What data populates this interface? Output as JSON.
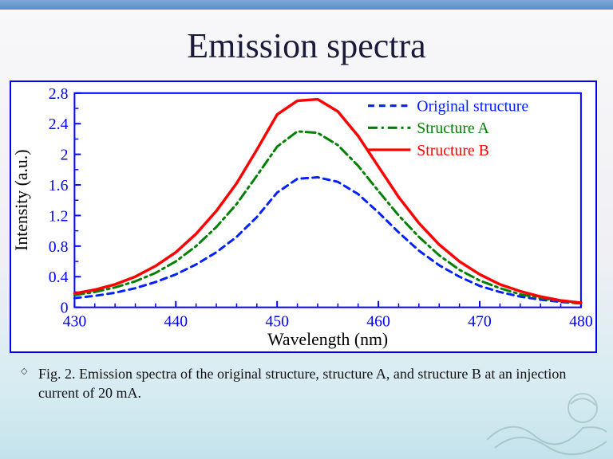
{
  "title": "Emission spectra",
  "caption": "Fig. 2. Emission spectra of the original structure, structure A, and structure B at an injection current of 20 mA.",
  "chart": {
    "type": "line",
    "background_color": "#ffffff",
    "frame_color": "#0000ff",
    "title_fontsize": 44,
    "xlabel": "Wavelength (nm)",
    "ylabel": "Intensity (a.u.)",
    "label_fontsize": 22,
    "label_color": "#000000",
    "tick_fontsize": 20,
    "tick_color": "#0000ff",
    "xlim": [
      430,
      480
    ],
    "ylim": [
      0,
      2.8
    ],
    "xticks": [
      430,
      440,
      450,
      460,
      470,
      480
    ],
    "yticks": [
      0,
      0.4,
      0.8,
      1.2,
      1.6,
      2.0,
      2.4,
      2.8
    ],
    "minor_ticks": true,
    "legend": {
      "position": "upper-right",
      "fontsize": 20,
      "items": [
        {
          "label": "Original structure",
          "color": "#0020ff",
          "dash": "dashed"
        },
        {
          "label": "Structure A",
          "color": "#008000",
          "dash": "dashdot"
        },
        {
          "label": "Structure B",
          "color": "#ff0000",
          "dash": "solid"
        }
      ]
    },
    "series": [
      {
        "name": "Original structure",
        "color": "#0020ff",
        "dash": "8,6",
        "line_width": 3,
        "x": [
          430,
          432,
          434,
          436,
          438,
          440,
          442,
          444,
          446,
          448,
          450,
          452,
          454,
          456,
          458,
          460,
          462,
          464,
          466,
          468,
          470,
          472,
          474,
          476,
          478,
          480
        ],
        "y": [
          0.12,
          0.15,
          0.19,
          0.25,
          0.33,
          0.43,
          0.56,
          0.72,
          0.92,
          1.18,
          1.5,
          1.68,
          1.7,
          1.64,
          1.48,
          1.24,
          0.98,
          0.74,
          0.55,
          0.4,
          0.28,
          0.2,
          0.14,
          0.1,
          0.07,
          0.05
        ]
      },
      {
        "name": "Structure A",
        "color": "#008000",
        "dash": "12,5,3,5",
        "line_width": 3,
        "x": [
          430,
          432,
          434,
          436,
          438,
          440,
          442,
          444,
          446,
          448,
          450,
          452,
          454,
          456,
          458,
          460,
          462,
          464,
          466,
          468,
          470,
          472,
          474,
          476,
          478,
          480
        ],
        "y": [
          0.16,
          0.2,
          0.26,
          0.34,
          0.45,
          0.6,
          0.8,
          1.05,
          1.35,
          1.72,
          2.1,
          2.3,
          2.28,
          2.12,
          1.85,
          1.52,
          1.2,
          0.92,
          0.68,
          0.49,
          0.35,
          0.25,
          0.17,
          0.12,
          0.08,
          0.05
        ]
      },
      {
        "name": "Structure B",
        "color": "#ff0000",
        "dash": "none",
        "line_width": 3.5,
        "x": [
          430,
          432,
          434,
          436,
          438,
          440,
          442,
          444,
          446,
          448,
          450,
          452,
          454,
          456,
          458,
          460,
          462,
          464,
          466,
          468,
          470,
          472,
          474,
          476,
          478,
          480
        ],
        "y": [
          0.18,
          0.23,
          0.3,
          0.4,
          0.54,
          0.72,
          0.96,
          1.26,
          1.62,
          2.06,
          2.52,
          2.7,
          2.72,
          2.56,
          2.24,
          1.84,
          1.44,
          1.1,
          0.82,
          0.6,
          0.43,
          0.3,
          0.21,
          0.14,
          0.09,
          0.06
        ]
      }
    ]
  }
}
